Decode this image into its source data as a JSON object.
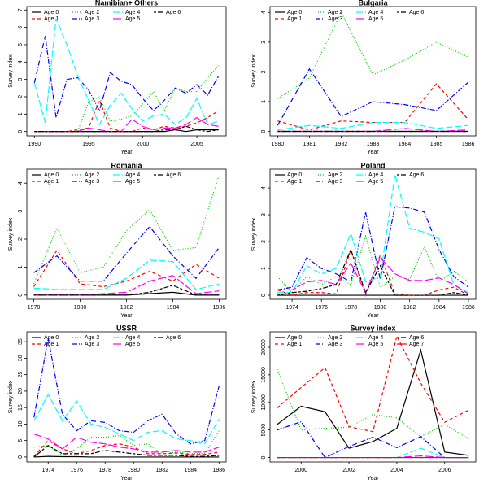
{
  "chart_data": [
    {
      "type": "line",
      "title": "Namibian+ Others",
      "xlabel": "Year",
      "ylabel": "Survey index",
      "x": [
        1990,
        1991,
        1992,
        1993,
        1994,
        1995,
        1996,
        1997,
        1998,
        1999,
        2000,
        2001,
        2002,
        2003,
        2004,
        2005,
        2006,
        2007
      ],
      "xlim": [
        1989.3,
        2007.7
      ],
      "ylim": [
        -0.25,
        7.2
      ],
      "xticks": [
        1990,
        1995,
        2000,
        2005
      ],
      "yticks": [
        0,
        1,
        2,
        3,
        4,
        5,
        6,
        7
      ],
      "series": [
        {
          "name": "Age 0",
          "color": "#000000",
          "values": [
            0,
            0,
            0,
            0,
            0,
            0,
            0,
            0,
            0,
            0,
            0,
            0,
            0,
            0.1,
            0,
            0.1,
            0.1,
            0.1
          ]
        },
        {
          "name": "Age 1",
          "color": "#ff0000",
          "values": [
            0,
            0,
            0,
            0,
            0.1,
            0.2,
            1.8,
            0.2,
            0,
            0,
            0.2,
            0.1,
            0.3,
            0.2,
            0.3,
            0.5,
            0.8,
            1.2
          ]
        },
        {
          "name": "Age 2",
          "color": "#00cd00",
          "values": [
            0,
            0,
            0,
            0,
            0,
            1.7,
            2.0,
            0.6,
            0.7,
            0.9,
            1.6,
            2.3,
            1.2,
            2.5,
            2.3,
            2.3,
            3.1,
            3.8
          ]
        },
        {
          "name": "Age 3",
          "color": "#0000ff",
          "values": [
            2.8,
            5.5,
            0.8,
            3.0,
            3.1,
            2.4,
            1.2,
            3.4,
            2.9,
            2.7,
            1.9,
            1.2,
            1.8,
            2.5,
            2.2,
            2.7,
            2.1,
            3.2
          ]
        },
        {
          "name": "Age 4",
          "color": "#00ffff",
          "values": [
            2.8,
            0.5,
            6.5,
            5.0,
            3.2,
            1.8,
            0.4,
            1.5,
            2.2,
            1.3,
            0.6,
            0.9,
            1.0,
            0.4,
            0.8,
            1.9,
            0.4,
            0.6
          ]
        },
        {
          "name": "Age 5",
          "color": "#ff00ff",
          "values": [
            0,
            0,
            0,
            0,
            0,
            0.2,
            0.1,
            0,
            0,
            0.7,
            0.3,
            0.1,
            0.2,
            0.2,
            0.4,
            0.8,
            0.4,
            0.3
          ]
        },
        {
          "name": "Age 6",
          "color": "#000000",
          "values": [
            0,
            0,
            0,
            0,
            0,
            0,
            0,
            0,
            0,
            0,
            0,
            0,
            0.1,
            0.1,
            0.3,
            0.1,
            0,
            0.1
          ]
        }
      ]
    },
    {
      "type": "line",
      "title": "Bulgaria",
      "xlabel": "Year",
      "ylabel": "Survey index",
      "x": [
        1980,
        1981,
        1982,
        1983,
        1984,
        1985,
        1986
      ],
      "xlim": [
        1979.76,
        1986.24
      ],
      "ylim": [
        -0.15,
        4.2
      ],
      "xticks": [
        1980,
        1981,
        1982,
        1983,
        1984,
        1985,
        1986
      ],
      "yticks": [
        0,
        1,
        2,
        3,
        4
      ],
      "series": [
        {
          "name": "Age 0",
          "color": "#000000",
          "values": [
            0,
            0,
            0,
            0,
            0,
            0,
            0
          ]
        },
        {
          "name": "Age 1",
          "color": "#ff0000",
          "values": [
            0.35,
            0.05,
            0.35,
            0.3,
            0.3,
            1.6,
            0.4
          ]
        },
        {
          "name": "Age 2",
          "color": "#00cd00",
          "values": [
            1.1,
            1.8,
            4.0,
            1.9,
            2.4,
            3.0,
            2.5
          ]
        },
        {
          "name": "Age 3",
          "color": "#0000ff",
          "values": [
            0.2,
            2.1,
            0.5,
            1.0,
            0.9,
            0.7,
            1.65
          ]
        },
        {
          "name": "Age 4",
          "color": "#00ffff",
          "values": [
            0.05,
            0.2,
            0.1,
            0.3,
            0.3,
            0.1,
            0.2
          ]
        },
        {
          "name": "Age 5",
          "color": "#ff00ff",
          "values": [
            0,
            0,
            0,
            0,
            0.1,
            0,
            0.05
          ]
        },
        {
          "name": "Age 6",
          "color": "#000000",
          "values": [
            0,
            0,
            0,
            0,
            0,
            0,
            0
          ]
        }
      ]
    },
    {
      "type": "line",
      "title": "Romania",
      "xlabel": "Year",
      "ylabel": "Survey index",
      "x": [
        1978,
        1979,
        1980,
        1981,
        1982,
        1983,
        1984,
        1985,
        1986
      ],
      "xlim": [
        1977.7,
        1986.3
      ],
      "ylim": [
        -0.15,
        4.5
      ],
      "xticks": [
        1978,
        1980,
        1982,
        1984,
        1986
      ],
      "yticks": [
        0,
        1,
        2,
        3,
        4
      ],
      "series": [
        {
          "name": "Age 0",
          "color": "#000000",
          "values": [
            0,
            0,
            0,
            0,
            0,
            0.05,
            0.1,
            0,
            0
          ]
        },
        {
          "name": "Age 1",
          "color": "#ff0000",
          "values": [
            0.3,
            1.6,
            0.4,
            0.3,
            0.5,
            0.85,
            0.5,
            1.1,
            0.6
          ]
        },
        {
          "name": "Age 2",
          "color": "#00cd00",
          "values": [
            0.4,
            2.4,
            0.8,
            1.0,
            2.3,
            3.05,
            1.6,
            1.7,
            4.3
          ]
        },
        {
          "name": "Age 3",
          "color": "#0000ff",
          "values": [
            0.8,
            1.4,
            0.5,
            0.5,
            1.5,
            2.45,
            1.4,
            0.6,
            1.7
          ]
        },
        {
          "name": "Age 4",
          "color": "#00ffff",
          "values": [
            0.25,
            0.2,
            0.2,
            0.2,
            0.6,
            1.25,
            1.2,
            0.2,
            0.4
          ]
        },
        {
          "name": "Age 5",
          "color": "#ff00ff",
          "values": [
            0,
            0,
            0,
            0.05,
            0.1,
            0.5,
            0.7,
            0.05,
            0.15
          ]
        },
        {
          "name": "Age 6",
          "color": "#000000",
          "values": [
            0,
            0,
            0,
            0,
            0,
            0.1,
            0.35,
            0,
            0
          ]
        }
      ]
    },
    {
      "type": "line",
      "title": "Poland",
      "xlabel": "Year",
      "ylabel": "Survey index",
      "x": [
        1973,
        1974,
        1975,
        1976,
        1977,
        1978,
        1979,
        1980,
        1981,
        1982,
        1983,
        1984,
        1985,
        1986
      ],
      "xlim": [
        1972.5,
        1986.5
      ],
      "ylim": [
        -0.15,
        4.7
      ],
      "xticks": [
        1974,
        1976,
        1978,
        1980,
        1982,
        1984,
        1986
      ],
      "yticks": [
        0,
        1,
        2,
        3,
        4
      ],
      "series": [
        {
          "name": "Age 0",
          "color": "#000000",
          "values": [
            0,
            0,
            0,
            0,
            0,
            0,
            0,
            0,
            0,
            0,
            0,
            0,
            0,
            0
          ]
        },
        {
          "name": "Age 1",
          "color": "#ff0000",
          "values": [
            0.2,
            0,
            0.1,
            0.1,
            0.05,
            1.7,
            0,
            1.5,
            0.05,
            0,
            0,
            0.2,
            0.3,
            0
          ]
        },
        {
          "name": "Age 2",
          "color": "#00cd00",
          "values": [
            0.7,
            0.1,
            0.7,
            0.4,
            0.7,
            0.4,
            2.2,
            0.3,
            0.7,
            0.6,
            1.8,
            0.5,
            0.9,
            0.5
          ]
        },
        {
          "name": "Age 3",
          "color": "#0000ff",
          "values": [
            0.2,
            0.3,
            1.4,
            1.0,
            0.8,
            0.5,
            3.1,
            0.6,
            3.3,
            3.25,
            3.1,
            1.7,
            0.7,
            0.3
          ]
        },
        {
          "name": "Age 4",
          "color": "#00ffff",
          "values": [
            0.1,
            0.1,
            1.1,
            0.8,
            1.0,
            2.3,
            0.5,
            0.7,
            4.5,
            2.5,
            2.35,
            2.1,
            0.4,
            0.1
          ]
        },
        {
          "name": "Age 5",
          "color": "#ff00ff",
          "values": [
            0.2,
            0.2,
            0.5,
            0.55,
            0.4,
            1.2,
            0.1,
            1.4,
            0.8,
            0.55,
            0.55,
            0.65,
            0.4,
            0.05
          ]
        },
        {
          "name": "Age 6",
          "color": "#000000",
          "values": [
            0,
            0.1,
            0.15,
            0.25,
            0.4,
            1.7,
            0.1,
            1.1,
            0,
            0,
            0,
            0,
            0.1,
            0
          ]
        }
      ]
    },
    {
      "type": "line",
      "title": "USSR",
      "xlabel": "Year",
      "ylabel": "Survey index",
      "x": [
        1973,
        1974,
        1975,
        1976,
        1977,
        1978,
        1979,
        1980,
        1981,
        1982,
        1983,
        1984,
        1985,
        1986
      ],
      "xlim": [
        1972.5,
        1986.5
      ],
      "ylim": [
        -1.5,
        38
      ],
      "xticks": [
        1974,
        1976,
        1978,
        1980,
        1982,
        1984,
        1986
      ],
      "yticks": [
        0,
        5,
        10,
        15,
        20,
        25,
        30,
        35
      ],
      "series": [
        {
          "name": "Age 0",
          "color": "#000000",
          "values": [
            0,
            0.2,
            0.1,
            0.1,
            0,
            0,
            0,
            0,
            0,
            0,
            0,
            0,
            0,
            0
          ]
        },
        {
          "name": "Age 1",
          "color": "#ff0000",
          "values": [
            0.2,
            5,
            2.5,
            1,
            2,
            3.5,
            4,
            3,
            1,
            1,
            1.2,
            0.8,
            0.8,
            1.5
          ]
        },
        {
          "name": "Age 2",
          "color": "#00cd00",
          "values": [
            3,
            3.5,
            0.5,
            2.5,
            6,
            6,
            6.5,
            3.5,
            4,
            1,
            1.5,
            1,
            1,
            8
          ]
        },
        {
          "name": "Age 3",
          "color": "#0000ff",
          "values": [
            12,
            36,
            13,
            8,
            11,
            10.5,
            8,
            7.5,
            11,
            13,
            7,
            4,
            5,
            21.5
          ]
        },
        {
          "name": "Age 4",
          "color": "#00ffff",
          "values": [
            11,
            19,
            11,
            17,
            10,
            9,
            7,
            5,
            7.5,
            8,
            5.5,
            5,
            4,
            11.5
          ]
        },
        {
          "name": "Age 5",
          "color": "#ff00ff",
          "values": [
            7,
            5.5,
            2.5,
            6,
            4.5,
            4,
            3,
            2.5,
            1.5,
            1.5,
            2,
            1.5,
            1.5,
            3
          ]
        },
        {
          "name": "Age 6",
          "color": "#000000",
          "values": [
            0,
            3.5,
            1,
            1,
            1,
            2,
            1.5,
            1,
            0.5,
            0.5,
            0.5,
            0.2,
            0.2,
            0.5
          ]
        }
      ]
    },
    {
      "type": "line",
      "title": "Survey index",
      "xlabel": "Year",
      "ylabel": "Survey index",
      "x": [
        1999,
        2000,
        2001,
        2002,
        2003,
        2004,
        2005,
        2006,
        2007
      ],
      "xlim": [
        1998.7,
        2007.3
      ],
      "ylim": [
        -800,
        22800
      ],
      "xticks": [
        2000,
        2002,
        2004,
        2006
      ],
      "yticks": [
        0,
        5000,
        10000,
        15000,
        20000
      ],
      "series": [
        {
          "name": "Age 0",
          "color": "#000000",
          "values": [
            6000,
            9300,
            8300,
            1700,
            2900,
            5300,
            19500,
            1000,
            400
          ]
        },
        {
          "name": "Age 1",
          "color": "#ff0000",
          "values": [
            9000,
            12700,
            16300,
            5600,
            4700,
            22000,
            13500,
            6400,
            8600
          ]
        },
        {
          "name": "Age 2",
          "color": "#00cd00",
          "values": [
            16000,
            5000,
            5300,
            5500,
            7800,
            7200,
            3800,
            6000,
            3400
          ]
        },
        {
          "name": "Age 3",
          "color": "#0000ff",
          "values": [
            5000,
            6500,
            0,
            2000,
            3700,
            1800,
            3800,
            0,
            0
          ]
        },
        {
          "name": "Age 4",
          "color": "#00ffff",
          "values": [
            0,
            0,
            0,
            0,
            0,
            0,
            1700,
            0,
            0
          ]
        },
        {
          "name": "Age 5",
          "color": "#ff00ff",
          "values": [
            0,
            0,
            0,
            0,
            0,
            0,
            300,
            0,
            0
          ]
        },
        {
          "name": "Age 6",
          "color": "#000000",
          "values": [
            0,
            0,
            0,
            0,
            0,
            0,
            0,
            0,
            0
          ]
        },
        {
          "name": "Age 7",
          "color": "#ff0000",
          "values": [
            0,
            0,
            0,
            0,
            0,
            0,
            0,
            0,
            0
          ]
        }
      ]
    }
  ]
}
